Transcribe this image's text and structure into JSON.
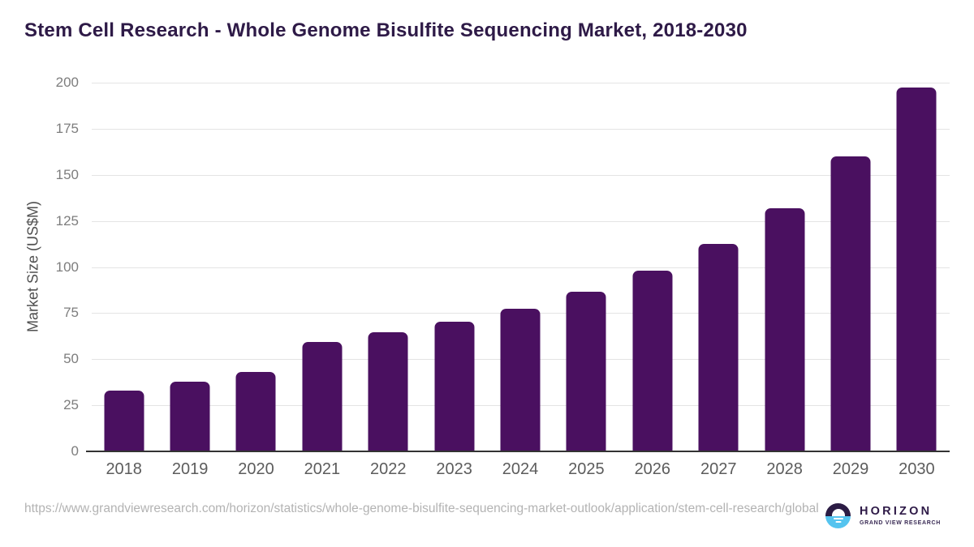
{
  "title": "Stem Cell Research - Whole Genome Bisulfite Sequencing Market, 2018-2030",
  "chart_data": {
    "type": "bar",
    "title": "Stem Cell Research - Whole Genome Bisulfite Sequencing Market, 2018-2030",
    "categories": [
      "2018",
      "2019",
      "2020",
      "2021",
      "2022",
      "2023",
      "2024",
      "2025",
      "2026",
      "2027",
      "2028",
      "2029",
      "2030"
    ],
    "values": [
      33,
      38,
      43,
      59.5,
      64.5,
      70.5,
      77.5,
      86.5,
      98,
      112.5,
      132,
      160,
      197.5
    ],
    "xlabel": "",
    "ylabel": "Market Size (US$M)",
    "ylim": [
      0,
      200
    ],
    "yticks": [
      0,
      25,
      50,
      75,
      100,
      125,
      150,
      175,
      200
    ],
    "grid": "horizontal",
    "legend": "none",
    "bar_color": "#4a1060"
  },
  "colors": {
    "title": "#2e1a47",
    "bar": "#4a1060",
    "gridline": "#e4e4e4",
    "axis_line": "#333333",
    "tick_label": "#7d7d7d",
    "x_label": "#5c5c5c",
    "y_title": "#4f4f4f",
    "url": "#b3b3b3",
    "logo_dark": "#2b1c44",
    "logo_blue": "#55c4ef",
    "logo_sub": "#3a2b55"
  },
  "footer": {
    "source_url": "https://www.grandviewresearch.com/horizon/statistics/whole-genome-bisulfite-sequencing-market-outlook/application/stem-cell-research/global",
    "logo": {
      "brand": "HORIZON",
      "subtitle": "GRAND VIEW RESEARCH"
    }
  }
}
